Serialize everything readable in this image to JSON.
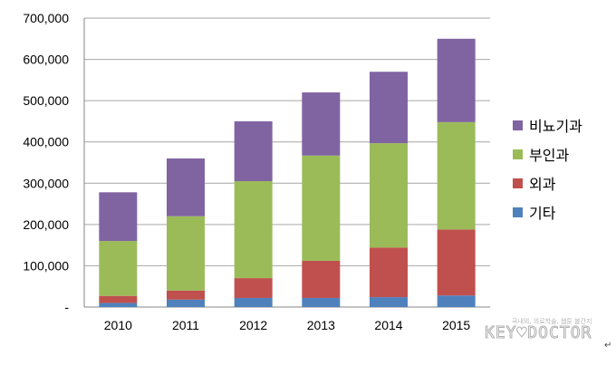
{
  "chart_data": {
    "type": "bar",
    "stacked": true,
    "categories": [
      "2010",
      "2011",
      "2012",
      "2013",
      "2014",
      "2015"
    ],
    "series": [
      {
        "name": "기타",
        "color": "#4f81bd",
        "values": [
          10000,
          18000,
          22000,
          22000,
          24000,
          28000
        ]
      },
      {
        "name": "외과",
        "color": "#c0504d",
        "values": [
          17000,
          22000,
          48000,
          90000,
          120000,
          160000
        ]
      },
      {
        "name": "부인과",
        "color": "#9bbb59",
        "values": [
          133000,
          180000,
          235000,
          255000,
          253000,
          260000
        ]
      },
      {
        "name": "비뇨기과",
        "color": "#8064a2",
        "values": [
          118000,
          140000,
          145000,
          153000,
          173000,
          202000
        ]
      }
    ],
    "yticks": [
      "-",
      "100,000",
      "200,000",
      "300,000",
      "400,000",
      "500,000",
      "600,000",
      "700,000"
    ],
    "ylim": [
      0,
      700000
    ],
    "grid": true,
    "legend_position": "right",
    "legend_order": [
      "비뇨기과",
      "부인과",
      "외과",
      "기타"
    ]
  },
  "watermark": {
    "subtitle": "국내외, 의료학술, 웹툰 블간지",
    "logo": "KEY♥DOCTOR"
  },
  "return_mark": "↵"
}
